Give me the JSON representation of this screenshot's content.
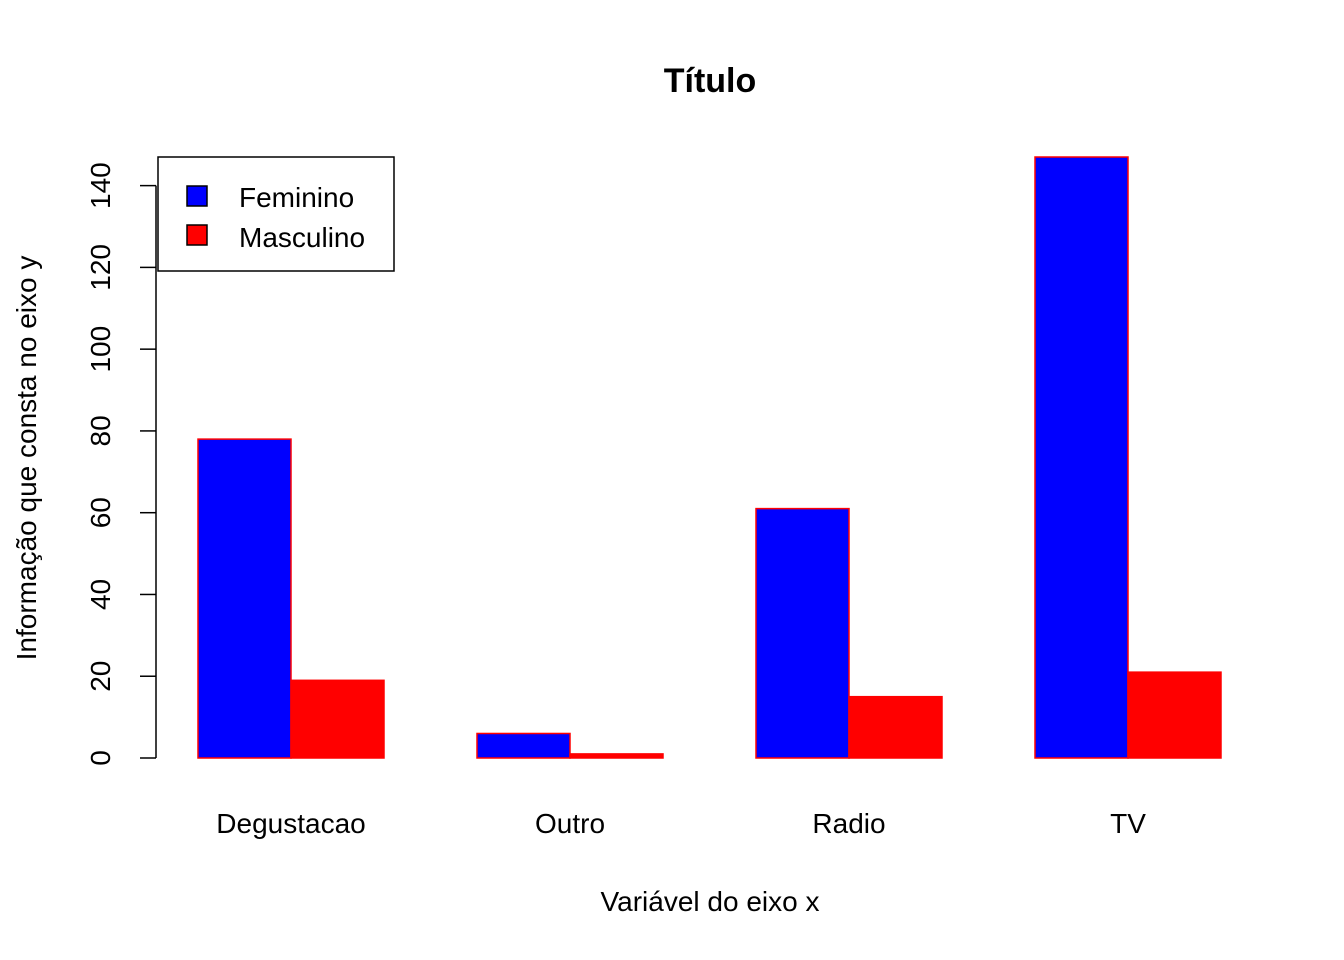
{
  "chart_data": {
    "type": "bar",
    "title": "Título",
    "xlabel": "Variável do eixo x",
    "ylabel": "Informação que consta no eixo y",
    "categories": [
      "Degustacao",
      "Outro",
      "Radio",
      "TV"
    ],
    "series": [
      {
        "name": "Feminino",
        "values": [
          78,
          6,
          61,
          147
        ],
        "color": "#0000ff"
      },
      {
        "name": "Masculino",
        "values": [
          19,
          1,
          15,
          21
        ],
        "color": "#ff0000"
      }
    ],
    "bar_border_color": "#ff0000",
    "yticks": [
      0,
      20,
      40,
      60,
      80,
      100,
      120,
      140
    ],
    "ylim": [
      0,
      147
    ],
    "legend_position": "top-left",
    "grid": false
  }
}
